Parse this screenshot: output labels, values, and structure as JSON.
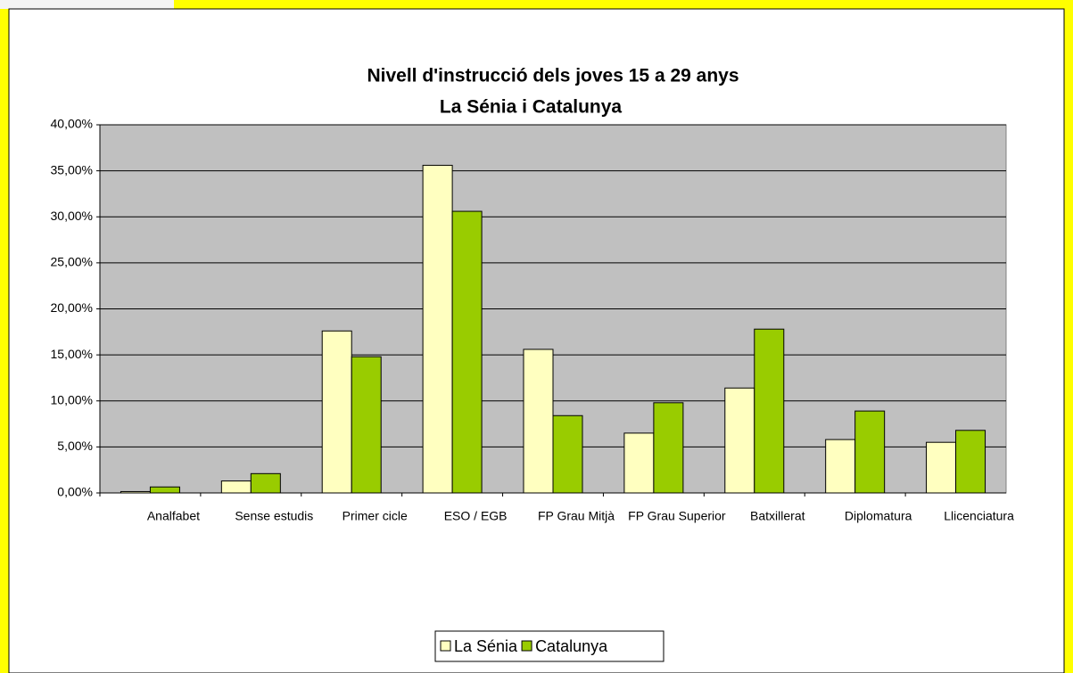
{
  "chart_data": {
    "type": "bar",
    "title": "Nivell d'instrucció dels joves 15 a 29 anys",
    "subtitle": "La Sénia i Catalunya",
    "categories": [
      "Analfabet",
      "Sense estudis",
      "Primer cicle",
      "ESO / EGB",
      "FP Grau Mitjà",
      "FP Grau Superior",
      "Batxillerat",
      "Diplomatura",
      "Llicenciatura"
    ],
    "series": [
      {
        "name": "La Sénia",
        "color": "#ffffc0",
        "values": [
          0.15,
          1.3,
          17.6,
          35.6,
          15.6,
          6.5,
          11.4,
          5.8,
          5.5
        ]
      },
      {
        "name": "Catalunya",
        "color": "#99cc00",
        "values": [
          0.65,
          2.1,
          14.8,
          30.6,
          8.4,
          9.8,
          17.8,
          8.9,
          6.8
        ]
      }
    ],
    "ylim": [
      0,
      40
    ],
    "yticks": [
      {
        "value": 0,
        "label": "0,00%"
      },
      {
        "value": 5,
        "label": "5,00%"
      },
      {
        "value": 10,
        "label": "10,00%"
      },
      {
        "value": 15,
        "label": "15,00%"
      },
      {
        "value": 20,
        "label": "20,00%"
      },
      {
        "value": 25,
        "label": "25,00%"
      },
      {
        "value": 30,
        "label": "30,00%"
      },
      {
        "value": 35,
        "label": "35,00%"
      },
      {
        "value": 40,
        "label": "40,00%"
      }
    ],
    "grid": true,
    "legend": "bottom",
    "plot_background": "#c0c0c0"
  }
}
